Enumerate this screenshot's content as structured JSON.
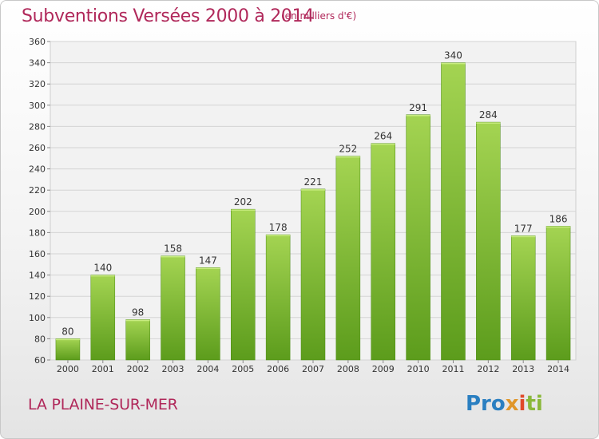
{
  "title": "Subventions Versées 2000 à 2014",
  "subtitle": "(en milliers d'€)",
  "commune": "LA PLAINE-SUR-MER",
  "logo": {
    "p1": "Pro",
    "p2": "x",
    "p3": "i",
    "p4": "ti"
  },
  "colors": {
    "title": "#b0285a",
    "bar_top": "#9ccc4a",
    "bar_bottom": "#5a9a1a"
  },
  "chart_data": {
    "type": "bar",
    "title": "Subventions Versées 2000 à 2014",
    "subtitle": "(en milliers d'€)",
    "categories": [
      "2000",
      "2001",
      "2002",
      "2003",
      "2004",
      "2005",
      "2006",
      "2007",
      "2008",
      "2009",
      "2010",
      "2011",
      "2012",
      "2013",
      "2014"
    ],
    "values": [
      80,
      140,
      98,
      158,
      147,
      202,
      178,
      221,
      252,
      264,
      291,
      340,
      284,
      177,
      186
    ],
    "ylim": [
      60,
      360
    ],
    "yticks": [
      60,
      80,
      100,
      120,
      140,
      160,
      180,
      200,
      220,
      240,
      260,
      280,
      300,
      320,
      340,
      360
    ],
    "grid": true,
    "data_labels": true
  }
}
